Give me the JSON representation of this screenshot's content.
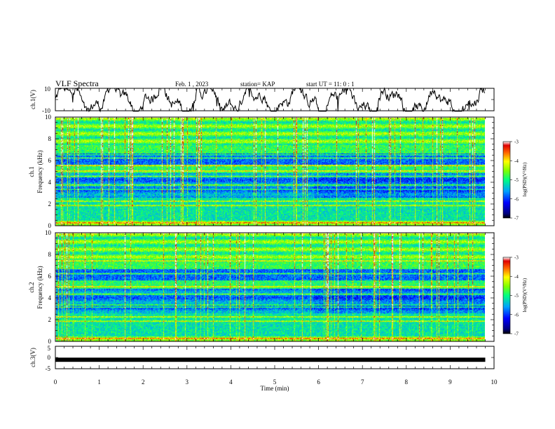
{
  "header": {
    "title": "VLF Spectra",
    "date": "Feb. 1 , 2023",
    "station": "station= KAP",
    "start": "start  UT =   11: 0  : 1"
  },
  "chart_data": [
    {
      "type": "line",
      "panel": "ch1-waveform",
      "ylabel": "ch.1(V)",
      "ylim": [
        -10,
        10
      ],
      "yticks": [
        "10",
        "-10"
      ],
      "xlim": [
        0,
        10
      ],
      "note": "noisy waveform trace from 0 to ~9.8 min"
    },
    {
      "type": "heatmap",
      "panel": "ch1-spectrogram",
      "ylabel_line1": "ch.1",
      "ylabel_line2": "Frequency  (kHz)",
      "ylim": [
        0,
        10
      ],
      "yticks": [
        "0",
        "2",
        "4",
        "6",
        "8",
        "10"
      ],
      "xlim": [
        0,
        9.8
      ],
      "colorbar": {
        "label": "log(PSD)(V²/Hz)",
        "range": [
          -7,
          -3
        ],
        "ticks": [
          "-3",
          "-4",
          "-5",
          "-6",
          "-7"
        ]
      },
      "bands_khz": [
        0.3,
        1.9,
        2.3,
        3.4,
        3.8,
        4.6,
        5.1,
        5.6,
        6.3,
        6.6
      ]
    },
    {
      "type": "heatmap",
      "panel": "ch2-spectrogram",
      "ylabel_line1": "ch.2",
      "ylabel_line2": "Frequency  (kHz)",
      "ylim": [
        0,
        10
      ],
      "yticks": [
        "0",
        "2",
        "4",
        "6",
        "8",
        "10"
      ],
      "xlim": [
        0,
        9.8
      ],
      "colorbar": {
        "label": "log(PSD)(V²/Hz)",
        "range": [
          -7,
          -3
        ],
        "ticks": [
          "-3",
          "-4",
          "-5",
          "-6",
          "-7"
        ]
      },
      "bands_khz": [
        0.3,
        1.9,
        2.3,
        3.2,
        3.4,
        4.4,
        5.1,
        6.3,
        7.5
      ]
    },
    {
      "type": "line",
      "panel": "ch3-waveform",
      "ylabel": "ch.3(V)",
      "ylim": [
        -5,
        5
      ],
      "yticks": [
        "5",
        "0",
        "-5"
      ],
      "xlim": [
        0,
        10
      ],
      "constant_value": -1,
      "xlabel": "Time  (min)",
      "xticks": [
        "0",
        "1",
        "2",
        "3",
        "4",
        "5",
        "6",
        "7",
        "8",
        "9",
        "10"
      ]
    }
  ]
}
